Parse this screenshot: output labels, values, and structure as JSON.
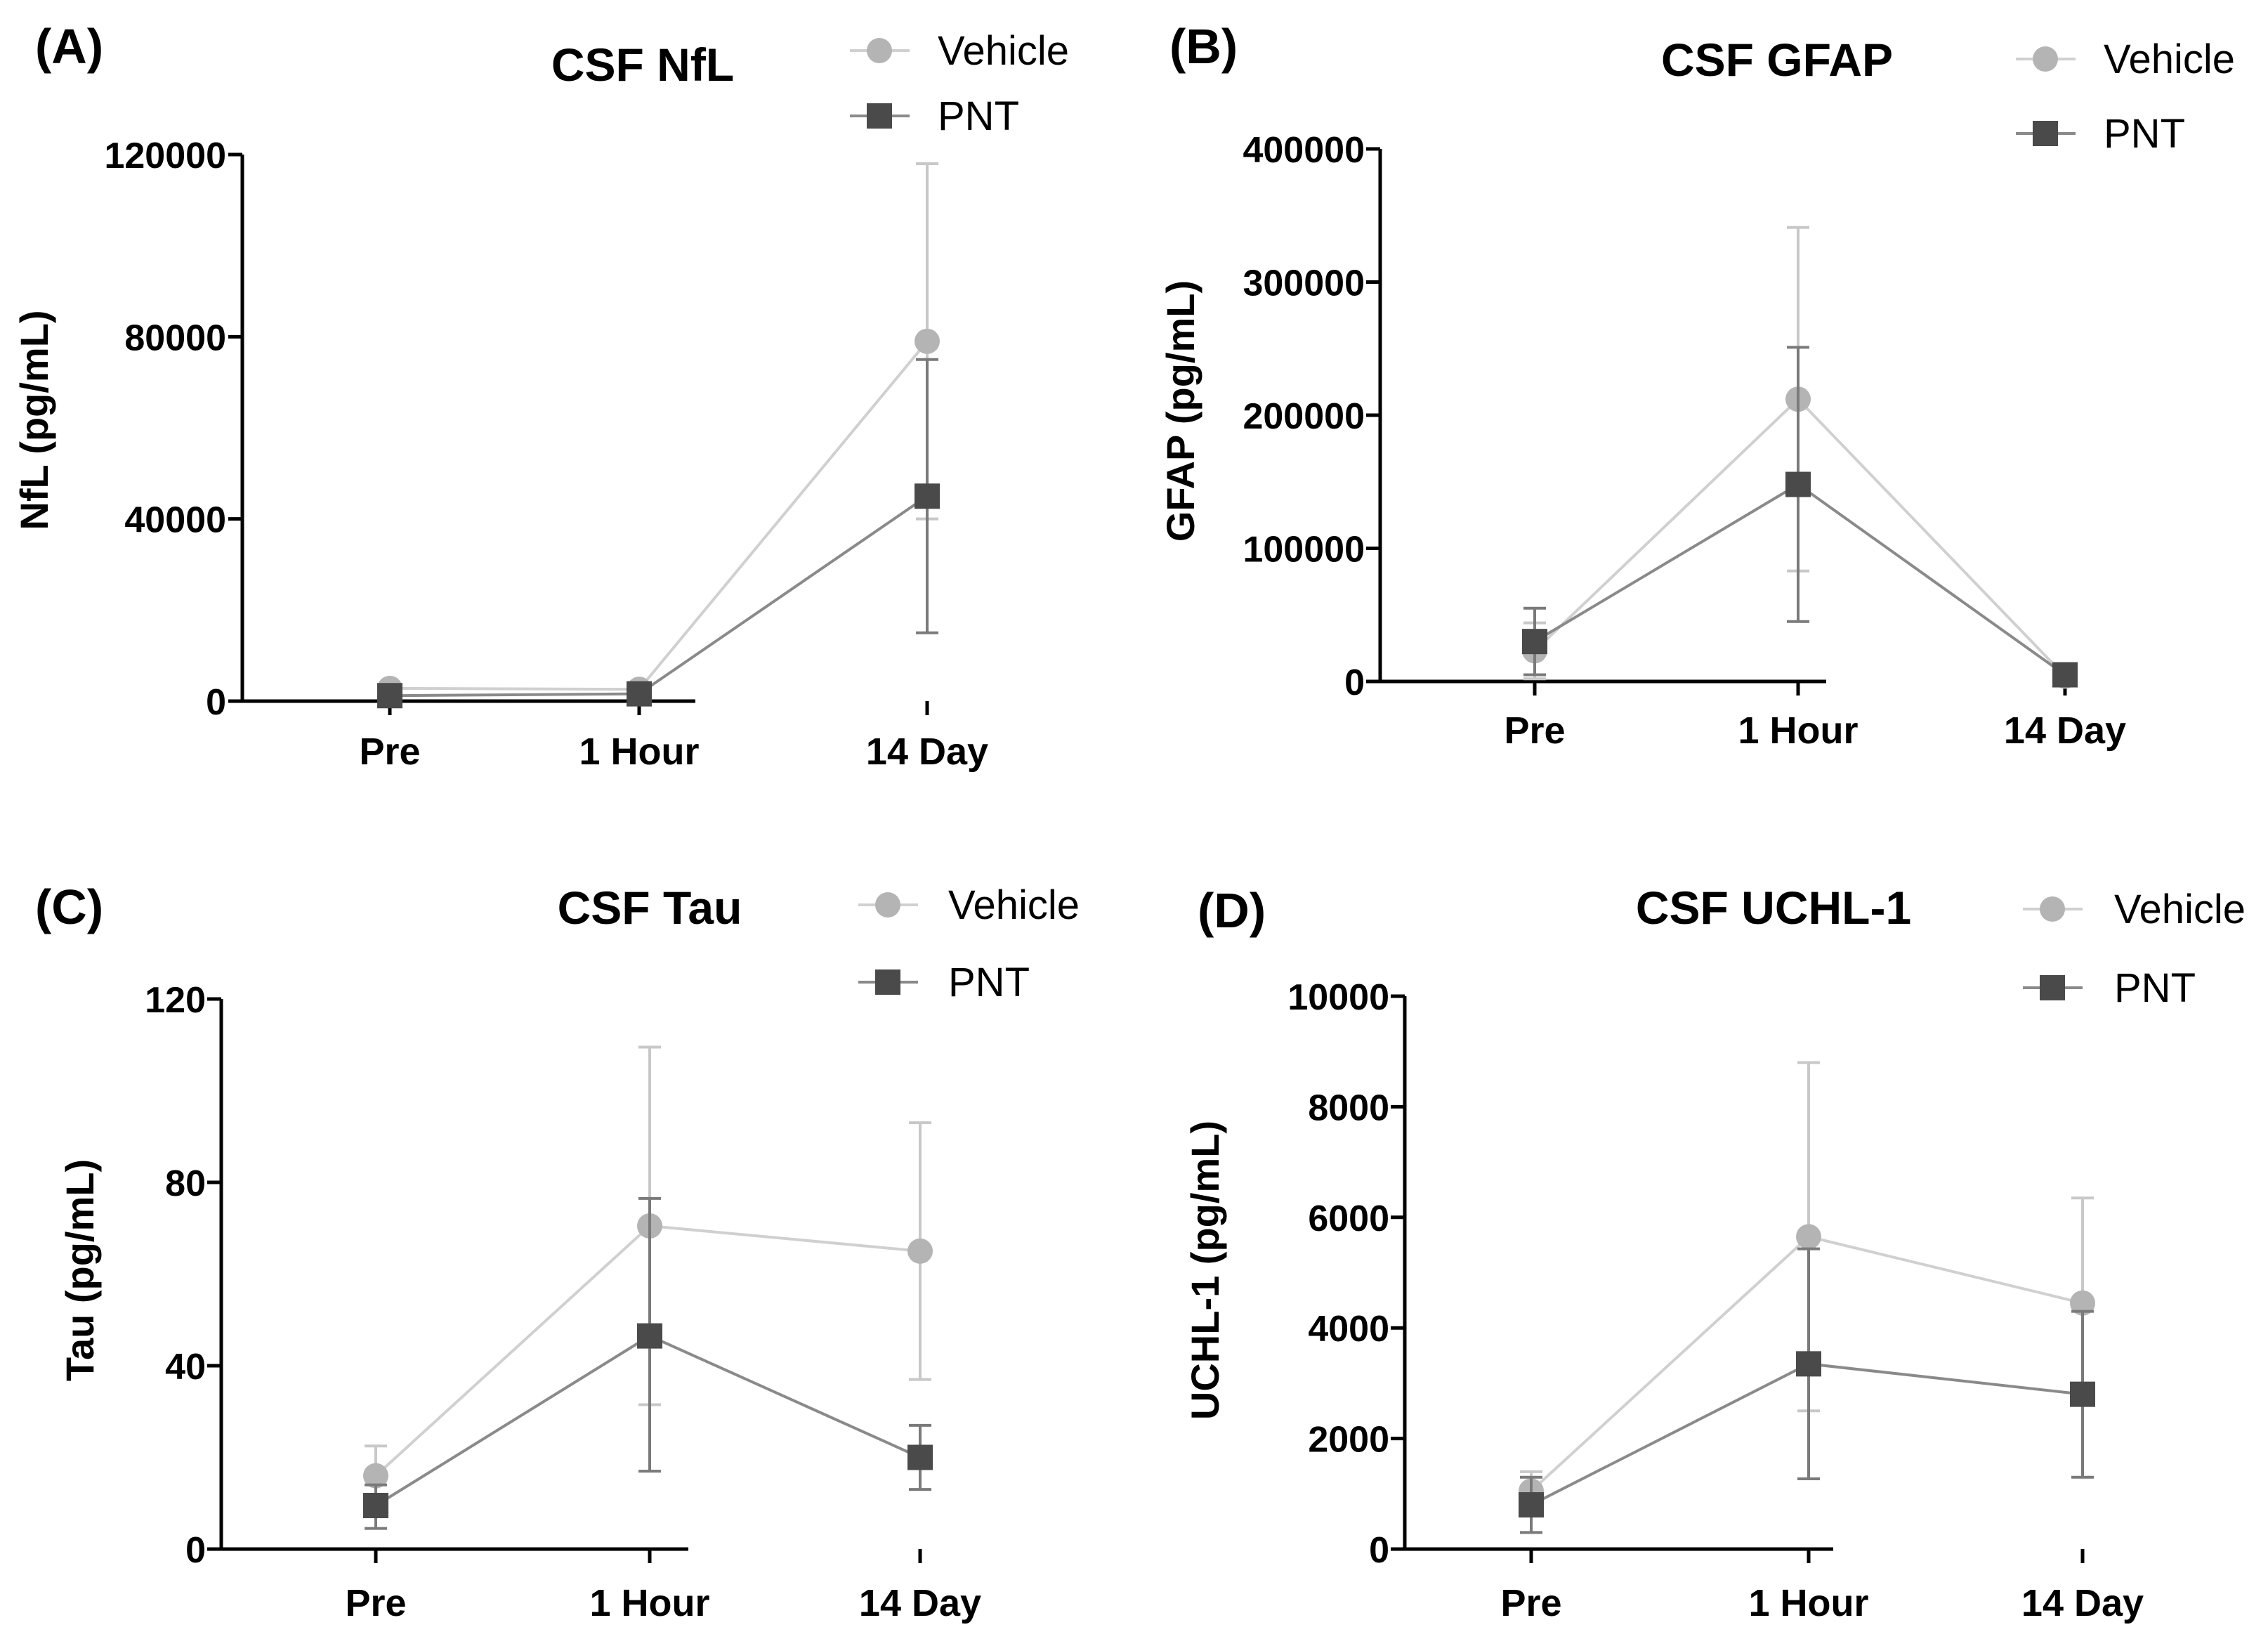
{
  "colors": {
    "vehicle": "#b4b4b4",
    "vehicle_line": "#d0d0d0",
    "pnt": "#4a4a4a",
    "pnt_line": "#8a8a8a",
    "axis": "#000000"
  },
  "series_names": [
    "Vehicle",
    "PNT"
  ],
  "chart_data": [
    {
      "type": "line",
      "panel": "(A)",
      "title": "CSF NfL",
      "ylabel": "NfL (pg/mL)",
      "categories": [
        "Pre",
        "1 Hour",
        "14 Day"
      ],
      "ylim": [
        0,
        120000
      ],
      "yticks": [
        0,
        40000,
        80000,
        120000
      ],
      "ytick_labels": [
        "0",
        "40000",
        "80000",
        "120000"
      ],
      "legend": "top-right",
      "series": [
        {
          "name": "Vehicle",
          "marker": "circle",
          "values": [
            2800,
            2600,
            79000
          ],
          "err_low": [
            2000,
            1900,
            40000
          ],
          "err_high": [
            3600,
            3300,
            118000
          ]
        },
        {
          "name": "PNT",
          "marker": "square",
          "values": [
            1200,
            1600,
            45000
          ],
          "err_low": [
            600,
            900,
            15000
          ],
          "err_high": [
            1800,
            2300,
            75000
          ]
        }
      ]
    },
    {
      "type": "line",
      "panel": "(B)",
      "title": "CSF GFAP",
      "ylabel": "GFAP (pg/mL)",
      "categories": [
        "Pre",
        "1 Hour",
        "14 Day"
      ],
      "ylim": [
        0,
        400000
      ],
      "yticks": [
        0,
        100000,
        200000,
        300000,
        400000
      ],
      "ytick_labels": [
        "0",
        "100000",
        "200000",
        "300000",
        "400000"
      ],
      "legend": "top-right",
      "series": [
        {
          "name": "Vehicle",
          "marker": "circle",
          "values": [
            23000,
            212000,
            4000
          ],
          "err_low": [
            2000,
            83000,
            1500
          ],
          "err_high": [
            44000,
            341000,
            7000
          ]
        },
        {
          "name": "PNT",
          "marker": "square",
          "values": [
            30000,
            148000,
            5000
          ],
          "err_low": [
            5000,
            45000,
            2000
          ],
          "err_high": [
            55000,
            251000,
            8000
          ]
        }
      ]
    },
    {
      "type": "line",
      "panel": "(C)",
      "title": "CSF Tau",
      "ylabel": "Tau (pg/mL)",
      "categories": [
        "Pre",
        "1 Hour",
        "14 Day"
      ],
      "ylim": [
        0,
        120
      ],
      "yticks": [
        0,
        40,
        80,
        120
      ],
      "ytick_labels": [
        "0",
        "40",
        "80",
        "120"
      ],
      "legend": "top-right",
      "series": [
        {
          "name": "Vehicle",
          "marker": "circle",
          "values": [
            16,
            70.5,
            65
          ],
          "err_low": [
            10,
            31.5,
            37
          ],
          "err_high": [
            22.5,
            109.5,
            93
          ]
        },
        {
          "name": "PNT",
          "marker": "square",
          "values": [
            9.5,
            46.5,
            20
          ],
          "err_low": [
            4.5,
            17,
            13
          ],
          "err_high": [
            14,
            76.5,
            27
          ]
        }
      ]
    },
    {
      "type": "line",
      "panel": "(D)",
      "title": "CSF UCHL-1",
      "ylabel": "UCHL-1 (pg/mL)",
      "categories": [
        "Pre",
        "1 Hour",
        "14 Day"
      ],
      "ylim": [
        0,
        10000
      ],
      "yticks": [
        0,
        2000,
        4000,
        6000,
        8000,
        10000
      ],
      "ytick_labels": [
        "0",
        "2000",
        "4000",
        "6000",
        "8000",
        "10000"
      ],
      "legend": "top-right",
      "series": [
        {
          "name": "Vehicle",
          "marker": "circle",
          "values": [
            1050,
            5650,
            4450
          ],
          "err_low": [
            700,
            2500,
            2600
          ],
          "err_high": [
            1400,
            8800,
            6350
          ]
        },
        {
          "name": "PNT",
          "marker": "square",
          "values": [
            800,
            3350,
            2800
          ],
          "err_low": [
            300,
            1270,
            1300
          ],
          "err_high": [
            1300,
            5430,
            4300
          ]
        }
      ]
    }
  ]
}
